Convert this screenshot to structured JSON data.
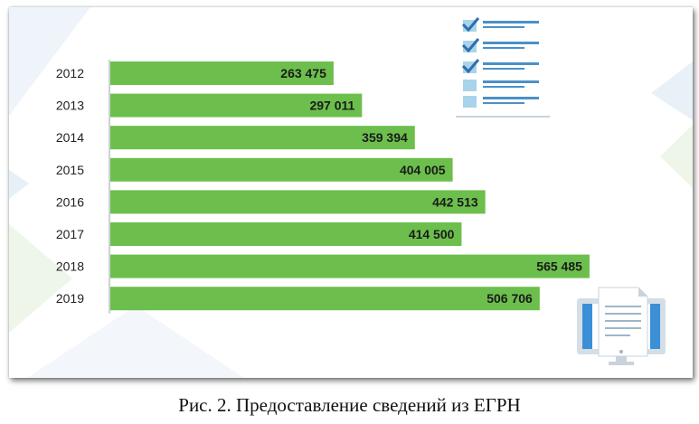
{
  "chart_data": {
    "type": "bar",
    "orientation": "horizontal",
    "categories": [
      "2012",
      "2013",
      "2014",
      "2015",
      "2016",
      "2017",
      "2018",
      "2019"
    ],
    "values": [
      263475,
      297011,
      359394,
      404005,
      442513,
      414500,
      565485,
      506706
    ],
    "value_labels": [
      "263 475",
      "297 011",
      "359 394",
      "404 005",
      "442 513",
      "414 500",
      "565 485",
      "506 706"
    ],
    "bar_color": "#6cbf4c",
    "xlim": [
      0,
      620000
    ],
    "grid": false,
    "legend": "none"
  },
  "caption": "Рис. 2. Предоставление сведений из ЕГРН",
  "decorations": {
    "checklist_icon": "checklist-icon",
    "monitor_icon": "monitor-document-icon",
    "accent_blue": "#4a90c8",
    "light_blue": "#a9d3ea"
  }
}
